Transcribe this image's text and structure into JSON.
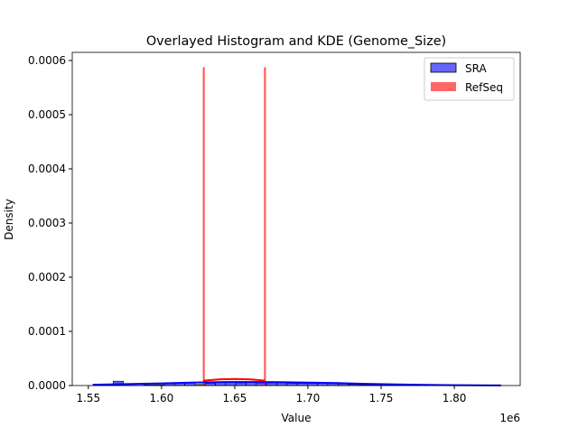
{
  "chart_data": {
    "type": "histogram+kde",
    "title": "Overlayed Histogram and KDE (Genome_Size)",
    "xlabel": "Value",
    "ylabel": "Density",
    "x_offset_label": "1e6",
    "xlim": [
      1.539,
      1.845
    ],
    "ylim": [
      0,
      0.000615
    ],
    "xticks": [
      1.55,
      1.6,
      1.65,
      1.7,
      1.75,
      1.8
    ],
    "xtick_labels": [
      "1.55",
      "1.60",
      "1.65",
      "1.70",
      "1.75",
      "1.80"
    ],
    "yticks": [
      0,
      0.0001,
      0.0002,
      0.0003,
      0.0004,
      0.0005,
      0.0006
    ],
    "ytick_labels": [
      "0.0000",
      "0.0001",
      "0.0002",
      "0.0003",
      "0.0004",
      "0.0005",
      "0.0006"
    ],
    "legend": {
      "position": "top-right",
      "entries": [
        "SRA",
        "RefSeq"
      ]
    },
    "series": [
      {
        "name": "SRA",
        "color": "#0000ff",
        "bin_start": 1.553,
        "bin_width": 0.00698,
        "values": [
          5e-07,
          5e-07,
          8e-06,
          5e-07,
          5e-07,
          1e-06,
          1.5e-06,
          5e-06,
          5e-06,
          5e-06,
          2e-06,
          4e-06,
          6e-06,
          6e-06,
          5e-06,
          6e-06,
          4e-06,
          5e-06,
          5e-06,
          4e-06,
          4e-06,
          4e-06,
          4e-06,
          4e-06,
          3e-06,
          2e-06,
          1e-06,
          1e-06,
          2e-06,
          1e-06,
          5e-07,
          5e-07,
          5e-07,
          0,
          0,
          0,
          0,
          0,
          0,
          0
        ],
        "kde": {
          "x": [
            1.553,
            1.58,
            1.6,
            1.62,
            1.64,
            1.66,
            1.68,
            1.7,
            1.72,
            1.74,
            1.76,
            1.78,
            1.8,
            1.832
          ],
          "y": [
            1.5e-06,
            3e-06,
            4e-06,
            5.5e-06,
            6.3e-06,
            6.5e-06,
            6.2e-06,
            5.5e-06,
            4.5e-06,
            3.2e-06,
            2e-06,
            1.2e-06,
            6e-07,
            2e-07
          ]
        }
      },
      {
        "name": "RefSeq",
        "color": "#ff0000",
        "bars": [
          {
            "x": 1.6287,
            "value": 0.000587
          },
          {
            "x": 1.6705,
            "value": 0.000587
          }
        ],
        "kde": {
          "x": [
            1.6287,
            1.635,
            1.64,
            1.65,
            1.66,
            1.665,
            1.6705
          ],
          "y": [
            9e-06,
            1.05e-05,
            1.15e-05,
            1.2e-05,
            1.15e-05,
            1.05e-05,
            9e-06
          ]
        }
      }
    ]
  }
}
